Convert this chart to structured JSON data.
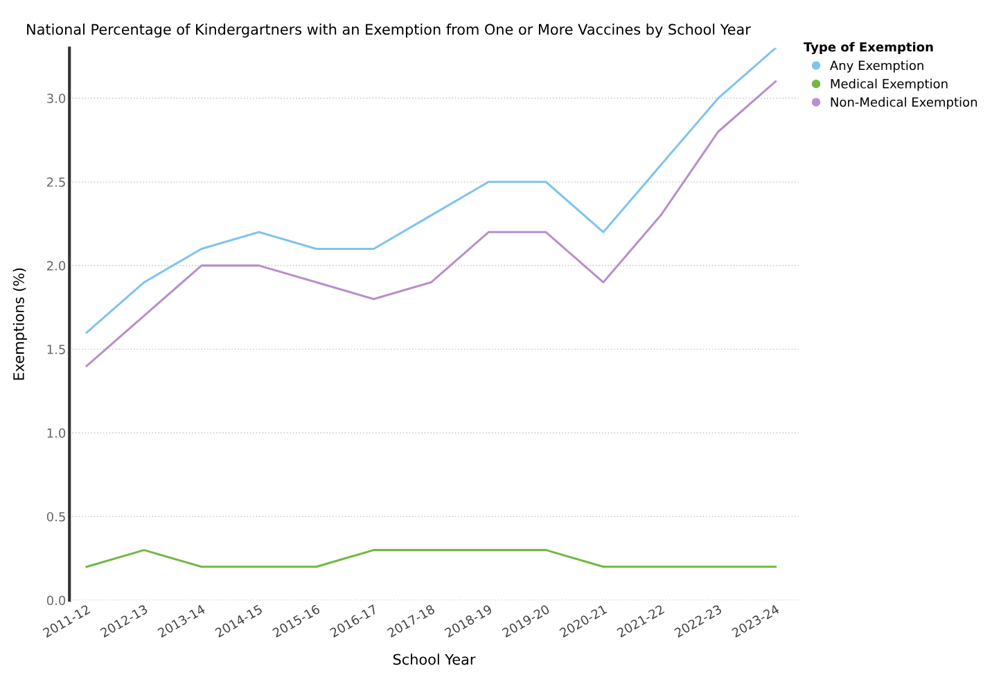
{
  "chart_data": {
    "type": "line",
    "title": "National Percentage of Kindergartners with an Exemption from One or More Vaccines by School Year",
    "xlabel": "School Year",
    "ylabel": "Exemptions (%)",
    "legend_title": "Type of Exemption",
    "categories": [
      "2011-12",
      "2012-13",
      "2013-14",
      "2014-15",
      "2015-16",
      "2016-17",
      "2017-18",
      "2018-19",
      "2019-20",
      "2020-21",
      "2021-22",
      "2022-23",
      "2023-24"
    ],
    "series": [
      {
        "name": "Any Exemption",
        "color": "#7fc4ec",
        "values": [
          1.6,
          1.9,
          2.1,
          2.2,
          2.1,
          2.1,
          2.3,
          2.5,
          2.5,
          2.2,
          2.6,
          3.0,
          3.3
        ]
      },
      {
        "name": "Medical Exemption",
        "color": "#72b843",
        "values": [
          0.2,
          0.3,
          0.2,
          0.2,
          0.2,
          0.3,
          0.3,
          0.3,
          0.3,
          0.2,
          0.2,
          0.2,
          0.2
        ]
      },
      {
        "name": "Non-Medical Exemption",
        "color": "#b98fc9",
        "values": [
          1.4,
          1.7,
          2.0,
          2.0,
          1.9,
          1.8,
          1.9,
          2.2,
          2.2,
          1.9,
          2.3,
          2.8,
          3.1
        ]
      }
    ],
    "ylim": [
      0,
      3.3
    ],
    "yticks": [
      {
        "value": 0,
        "label": "0.0"
      },
      {
        "value": 0.5,
        "label": "0.5"
      },
      {
        "value": 1,
        "label": "1.0"
      },
      {
        "value": 1.5,
        "label": "1.5"
      },
      {
        "value": 2,
        "label": "2.0"
      },
      {
        "value": 2.5,
        "label": "2.5"
      },
      {
        "value": 3,
        "label": "3.0"
      }
    ],
    "grid": "y",
    "legend": "top right",
    "marker": "none",
    "line_style": "solid"
  }
}
